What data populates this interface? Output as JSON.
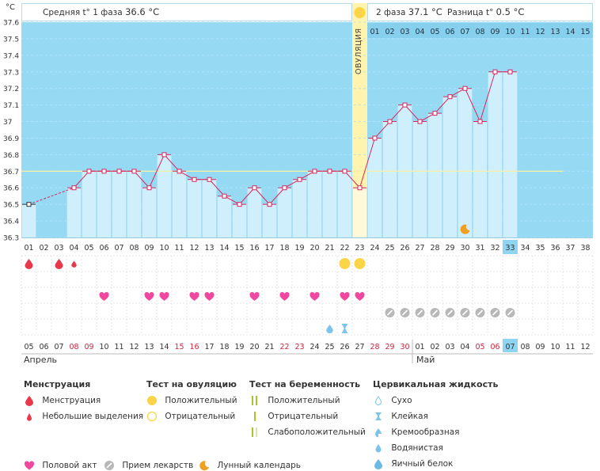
{
  "unit_label": "°C",
  "phase1": {
    "label": "Средняя t° 1 фаза",
    "value": "36.6 °C"
  },
  "phase2": {
    "label": "2 фаза",
    "value": "37.1 °C"
  },
  "diff": {
    "label": "Разница t°",
    "value": "0.5 °C"
  },
  "ovulation_label": "ОВУЛЯЦИЯ",
  "months": {
    "april": "Апрель",
    "may": "Май"
  },
  "chart_data": {
    "type": "line",
    "y_ticks": [
      "36.3",
      "36.4",
      "36.5",
      "36.6",
      "36.7",
      "36.8",
      "36.9",
      "37",
      "37.1",
      "37.2",
      "37.3",
      "37.4",
      "37.5",
      "37.6"
    ],
    "ylim": [
      36.3,
      37.6
    ],
    "coverline": 36.7,
    "cycle_days": [
      "01",
      "02",
      "03",
      "04",
      "05",
      "06",
      "07",
      "08",
      "09",
      "10",
      "11",
      "12",
      "13",
      "14",
      "15",
      "16",
      "17",
      "18",
      "19",
      "20",
      "21",
      "22",
      "23",
      "24",
      "25",
      "26",
      "27",
      "28",
      "29",
      "30",
      "31",
      "32",
      "33",
      "34",
      "35",
      "36",
      "37",
      "38"
    ],
    "temps": [
      36.5,
      null,
      null,
      36.6,
      36.7,
      36.7,
      36.7,
      36.7,
      36.6,
      36.8,
      36.7,
      36.65,
      36.65,
      36.55,
      36.5,
      36.6,
      36.5,
      36.6,
      36.65,
      36.7,
      36.7,
      36.7,
      36.6,
      36.9,
      37.0,
      37.1,
      37.0,
      37.05,
      37.15,
      37.2,
      37.0,
      37.3,
      37.3,
      null,
      null,
      null,
      null,
      null
    ],
    "calendar_days": [
      "05",
      "06",
      "07",
      "08",
      "09",
      "10",
      "11",
      "12",
      "13",
      "14",
      "15",
      "16",
      "17",
      "18",
      "19",
      "20",
      "21",
      "22",
      "23",
      "24",
      "25",
      "26",
      "27",
      "28",
      "29",
      "30",
      "01",
      "02",
      "03",
      "04",
      "05",
      "06",
      "07",
      "08",
      "09",
      "10",
      "11",
      "12"
    ],
    "red_calendar_days": [
      3,
      4,
      10,
      11,
      17,
      18,
      23,
      24,
      25,
      30,
      31
    ],
    "phase2_days": [
      "01",
      "02",
      "03",
      "04",
      "05",
      "06",
      "07",
      "08",
      "09",
      "10",
      "11",
      "12",
      "13",
      "14",
      "15"
    ],
    "ovulation_day_index": 22,
    "current_day_index": 32,
    "menstruation": [
      0,
      2
    ],
    "small_discharge": [
      3
    ],
    "ovulation_test_positive": [
      21,
      22
    ],
    "intercourse": [
      5,
      8,
      9,
      11,
      12,
      15,
      17,
      19,
      21,
      22
    ],
    "medication": [
      24,
      25,
      26,
      27,
      28,
      29,
      30,
      31,
      32
    ],
    "cervical_watery": [
      20
    ],
    "cervical_sticky": [
      21
    ],
    "moon": [
      29
    ]
  },
  "legend": {
    "menstruation_title": "Менструация",
    "menstruation": "Менструация",
    "small_discharge": "Небольшие выделения",
    "ovulation_test_title": "Тест на овуляцию",
    "positive": "Положительный",
    "negative": "Отрицательный",
    "pregnancy_test_title": "Тест на беременность",
    "preg_positive": "Положительный",
    "preg_negative": "Отрицательный",
    "preg_weak": "Слабоположительный",
    "cervical_title": "Цервикальная жидкость",
    "dry": "Сухо",
    "sticky": "Клейкая",
    "creamy": "Кремообразная",
    "watery": "Водянистая",
    "egg_white": "Яичный белок",
    "intercourse": "Половой акт",
    "medication": "Прием лекарств",
    "moon": "Лунный календарь"
  },
  "colors": {
    "sky": "#95d9f3",
    "bar": "#d0effd",
    "line": "#d8265c",
    "ovulation": "#fff3b0",
    "heart": "#f0479f",
    "drop": "#e8384b",
    "yellow": "#fbd547",
    "today": "#8fd4f0"
  }
}
